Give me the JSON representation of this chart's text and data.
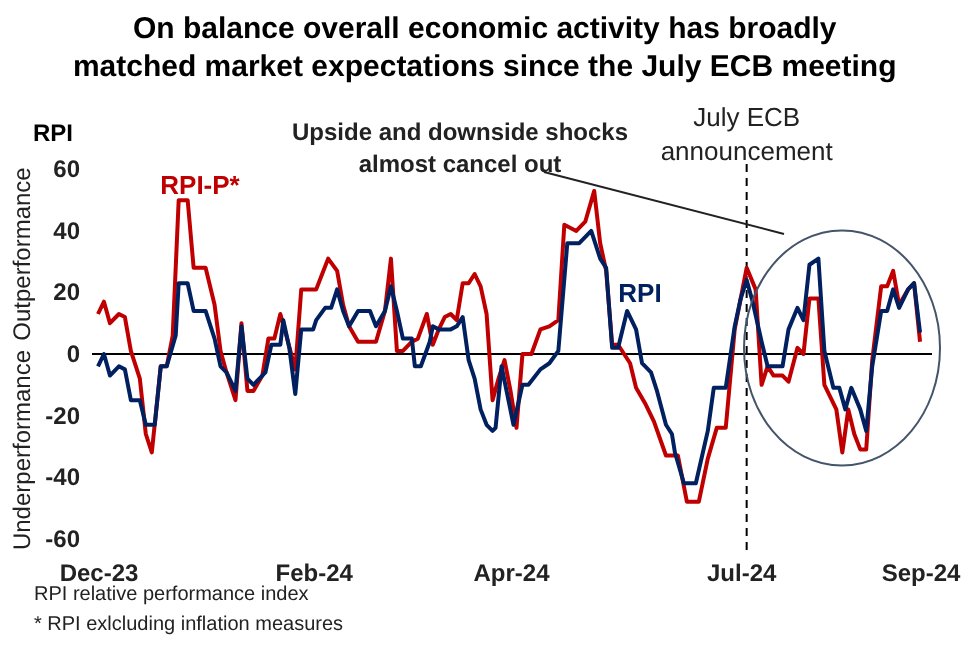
{
  "chart_data": {
    "type": "line",
    "title": "On balance overall economic activity has broadly\nmatched market expectations since the July ECB meeting",
    "ylabel": "RPI",
    "annotations": [
      "Upside and downside shocks\nalmost cancel out",
      "Outperformance",
      "Underperformance",
      "RPI relative performance index",
      "* RPI exlcluding inflation measures"
    ],
    "xlim": [
      "2023-11-29",
      "2024-09-05"
    ],
    "xticks": [
      {
        "value": "2023-12-01",
        "label": "Dec-23"
      },
      {
        "value": "2024-02-11",
        "label": "Feb-24"
      },
      {
        "value": "2024-04-17",
        "label": "Apr-24"
      },
      {
        "value": "2024-07-03",
        "label": "Jul-24"
      },
      {
        "value": "2024-09-01",
        "label": "Sep-24"
      }
    ],
    "ylim": [
      -65,
      65
    ],
    "yticks": [
      -60,
      -40,
      -20,
      0,
      20,
      40,
      60
    ],
    "grid": false,
    "legend": false,
    "marker": "none",
    "line_style": "solid",
    "ref_lines": [
      {
        "axis": "x",
        "value": "2024-07-05",
        "label": "July ECB\nannouncement",
        "color": "#000000",
        "line_style": "dashed"
      },
      {
        "axis": "y",
        "value": 0,
        "color": "#000000",
        "line_style": "solid"
      }
    ],
    "series": [
      {
        "name": "RPI-P*",
        "color": "#c00000",
        "x": [
          "2023-12-01",
          "2023-12-03",
          "2023-12-05",
          "2023-12-08",
          "2023-12-10",
          "2023-12-12",
          "2023-12-15",
          "2023-12-17",
          "2023-12-19",
          "2023-12-22",
          "2023-12-24",
          "2023-12-26",
          "2023-12-28",
          "2023-12-31",
          "2024-01-02",
          "2024-01-06",
          "2024-01-09",
          "2024-01-11",
          "2024-01-13",
          "2024-01-16",
          "2024-01-18",
          "2024-01-20",
          "2024-01-22",
          "2024-01-25",
          "2024-01-27",
          "2024-01-29",
          "2024-01-31",
          "2024-02-02",
          "2024-02-05",
          "2024-02-07",
          "2024-02-12",
          "2024-02-14",
          "2024-02-16",
          "2024-02-19",
          "2024-02-21",
          "2024-02-23",
          "2024-02-26",
          "2024-03-03",
          "2024-03-06",
          "2024-03-08",
          "2024-03-10",
          "2024-03-12",
          "2024-03-15",
          "2024-03-17",
          "2024-03-20",
          "2024-03-22",
          "2024-03-24",
          "2024-03-26",
          "2024-03-28",
          "2024-03-30",
          "2024-04-01",
          "2024-04-03",
          "2024-04-05",
          "2024-04-07",
          "2024-04-09",
          "2024-04-11",
          "2024-04-13",
          "2024-04-15",
          "2024-04-17",
          "2024-04-19",
          "2024-04-21",
          "2024-04-24",
          "2024-04-27",
          "2024-04-30",
          "2024-05-03",
          "2024-05-05",
          "2024-05-09",
          "2024-05-12",
          "2024-05-15",
          "2024-05-17",
          "2024-05-19",
          "2024-05-21",
          "2024-05-23",
          "2024-05-27",
          "2024-05-29",
          "2024-06-01",
          "2024-06-04",
          "2024-06-08",
          "2024-06-12",
          "2024-06-15",
          "2024-06-19",
          "2024-06-22",
          "2024-06-25",
          "2024-06-28",
          "2024-07-01",
          "2024-07-03",
          "2024-07-05",
          "2024-07-08",
          "2024-07-10",
          "2024-07-12",
          "2024-07-14",
          "2024-07-17",
          "2024-07-19",
          "2024-07-22",
          "2024-07-24",
          "2024-07-26",
          "2024-07-29",
          "2024-07-31",
          "2024-08-04",
          "2024-08-06",
          "2024-08-08",
          "2024-08-10",
          "2024-08-12",
          "2024-08-14",
          "2024-08-16",
          "2024-08-19",
          "2024-08-21",
          "2024-08-23",
          "2024-08-25",
          "2024-08-28",
          "2024-08-30",
          "2024-09-01"
        ],
        "values": [
          13,
          17,
          10,
          13,
          12,
          1,
          -8,
          -26,
          -32,
          -4,
          -4,
          6,
          50,
          50,
          28,
          28,
          16,
          1,
          -6,
          -15,
          10,
          -12,
          -12,
          -7,
          5,
          5,
          13,
          6,
          -5,
          21,
          21,
          26,
          31,
          27,
          16,
          9,
          4,
          4,
          14,
          31,
          1,
          1,
          4,
          5,
          13,
          3,
          8,
          12,
          13,
          11,
          23,
          23,
          26,
          22,
          13,
          -15,
          -8,
          -2,
          -12,
          -24,
          0,
          0,
          8,
          9,
          11,
          42,
          40,
          43,
          53,
          36,
          27,
          3,
          3,
          -3,
          -11,
          -16,
          -22,
          -33,
          -33,
          -48,
          -48,
          -34,
          -24,
          -24,
          8,
          18,
          28,
          21,
          -10,
          -4,
          -7,
          -7,
          -9,
          2,
          0,
          18,
          18,
          -10,
          -18,
          -32,
          -18,
          -26,
          -31,
          -31,
          -2,
          22,
          22,
          27,
          16,
          21,
          23,
          4
        ]
      },
      {
        "name": "RPI",
        "color": "#002060",
        "x": [
          "2023-12-01",
          "2023-12-03",
          "2023-12-05",
          "2023-12-08",
          "2023-12-10",
          "2023-12-12",
          "2023-12-15",
          "2023-12-17",
          "2023-12-20",
          "2023-12-22",
          "2023-12-24",
          "2023-12-27",
          "2023-12-28",
          "2023-12-31",
          "2024-01-02",
          "2024-01-06",
          "2024-01-09",
          "2024-01-11",
          "2024-01-13",
          "2024-01-16",
          "2024-01-18",
          "2024-01-20",
          "2024-01-22",
          "2024-01-24",
          "2024-01-26",
          "2024-01-28",
          "2024-01-31",
          "2024-02-01",
          "2024-02-03",
          "2024-02-05",
          "2024-02-07",
          "2024-02-11",
          "2024-02-12",
          "2024-02-15",
          "2024-02-17",
          "2024-02-19",
          "2024-02-21",
          "2024-02-23",
          "2024-02-26",
          "2024-03-01",
          "2024-03-03",
          "2024-03-06",
          "2024-03-08",
          "2024-03-10",
          "2024-03-12",
          "2024-03-15",
          "2024-03-16",
          "2024-03-18",
          "2024-03-21",
          "2024-03-22",
          "2024-03-24",
          "2024-03-28",
          "2024-03-30",
          "2024-04-01",
          "2024-04-03",
          "2024-04-05",
          "2024-04-07",
          "2024-04-09",
          "2024-04-11",
          "2024-04-12",
          "2024-04-14",
          "2024-04-18",
          "2024-04-21",
          "2024-04-23",
          "2024-04-27",
          "2024-04-30",
          "2024-05-03",
          "2024-05-06",
          "2024-05-10",
          "2024-05-14",
          "2024-05-17",
          "2024-05-19",
          "2024-05-21",
          "2024-05-23",
          "2024-05-26",
          "2024-05-29",
          "2024-05-31",
          "2024-06-03",
          "2024-06-05",
          "2024-06-08",
          "2024-06-10",
          "2024-06-11",
          "2024-06-14",
          "2024-06-18",
          "2024-06-22",
          "2024-06-24",
          "2024-06-28",
          "2024-07-01",
          "2024-07-03",
          "2024-07-05",
          "2024-07-07",
          "2024-07-10",
          "2024-07-12",
          "2024-07-17",
          "2024-07-19",
          "2024-07-22",
          "2024-07-24",
          "2024-07-26",
          "2024-07-29",
          "2024-07-31",
          "2024-08-03",
          "2024-08-05",
          "2024-08-07",
          "2024-08-09",
          "2024-08-12",
          "2024-08-14",
          "2024-08-16",
          "2024-08-19",
          "2024-08-21",
          "2024-08-23",
          "2024-08-25",
          "2024-08-28",
          "2024-08-30",
          "2024-09-01"
        ],
        "values": [
          -4,
          0,
          -7,
          -4,
          -5,
          -15,
          -15,
          -23,
          -23,
          -4,
          -4,
          6,
          23,
          23,
          14,
          14,
          5,
          -4,
          -6,
          -12,
          9,
          -8,
          -10,
          -8,
          -6,
          3,
          3,
          11,
          2,
          -13,
          8,
          8,
          11,
          15,
          15,
          21,
          14,
          9,
          14,
          14,
          9,
          14,
          22,
          14,
          5,
          5,
          -4,
          -4,
          4,
          9,
          8,
          8,
          9,
          12,
          -2,
          -8,
          -18,
          -23,
          -25,
          -24,
          -4,
          -23,
          -10,
          -10,
          -5,
          -3,
          1,
          36,
          36,
          40,
          31,
          28,
          2,
          2,
          14,
          8,
          -3,
          -6,
          -12,
          -23,
          -26,
          -32,
          -42,
          -42,
          -25,
          -11,
          -11,
          9,
          18,
          24,
          17,
          4,
          -4,
          -4,
          8,
          15,
          11,
          29,
          31,
          1,
          -11,
          -11,
          -18,
          -11,
          -18,
          -25,
          -4,
          14,
          14,
          21,
          15,
          21,
          23,
          7
        ]
      }
    ]
  }
}
